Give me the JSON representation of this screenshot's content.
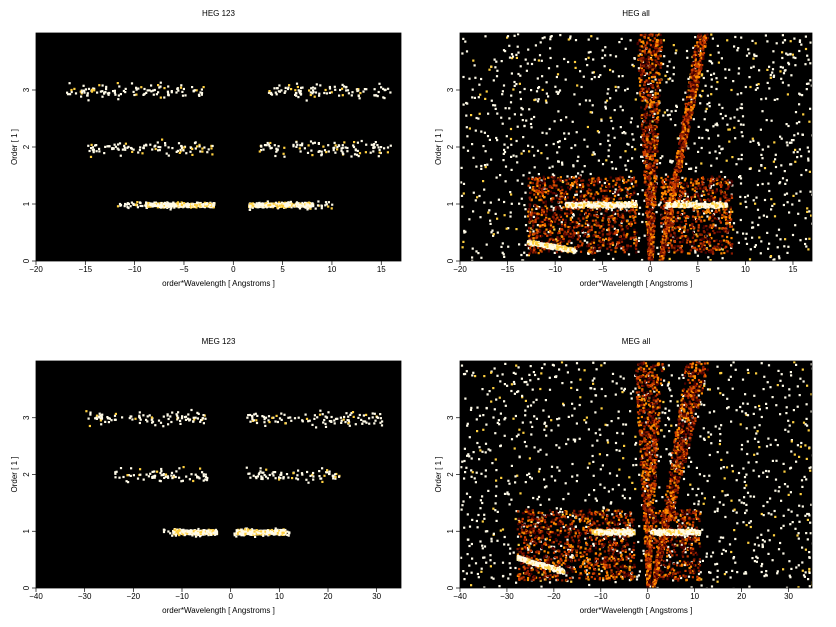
{
  "chart_data": [
    {
      "type": "heatmap",
      "title": "HEG 123",
      "xlabel": "order*Wavelength [ Angstroms ]",
      "ylabel": "Order [ 1 ]",
      "xlim": [
        -20,
        17
      ],
      "ylim": [
        0,
        4
      ],
      "xticks": [
        -20,
        -15,
        -10,
        -5,
        0,
        5,
        10,
        15
      ],
      "yticks": [
        0,
        1,
        2,
        3
      ],
      "background": "#000000",
      "colormap": [
        "#4a0000",
        "#8b1a00",
        "#d04000",
        "#ff8c00",
        "#ffd040",
        "#fffbe8"
      ],
      "regions": [
        {
          "kind": "band",
          "order": 1,
          "x": [
            -12,
            -2
          ],
          "core": [
            -9,
            -2
          ],
          "density": "high"
        },
        {
          "kind": "band",
          "order": 1,
          "x": [
            1.5,
            10
          ],
          "core": [
            1.5,
            8
          ],
          "density": "high"
        },
        {
          "kind": "band",
          "order": 2,
          "x": [
            -15,
            -2
          ],
          "density": "low"
        },
        {
          "kind": "band",
          "order": 2,
          "x": [
            2,
            16
          ],
          "density": "low"
        },
        {
          "kind": "band",
          "order": 3,
          "x": [
            -17,
            -3
          ],
          "density": "low"
        },
        {
          "kind": "band",
          "order": 3,
          "x": [
            3,
            16
          ],
          "density": "low"
        }
      ]
    },
    {
      "type": "heatmap",
      "title": "HEG all",
      "xlabel": "order*Wavelength [ Angstroms ]",
      "ylabel": "Order [ 1 ]",
      "xlim": [
        -20,
        17
      ],
      "ylim": [
        0,
        4
      ],
      "xticks": [
        -20,
        -15,
        -10,
        -5,
        0,
        5,
        10,
        15
      ],
      "yticks": [
        0,
        1,
        2,
        3
      ],
      "background": "#000000",
      "colormap": [
        "#4a0000",
        "#8b1a00",
        "#d04000",
        "#ff8c00",
        "#ffd040",
        "#fffbe8"
      ],
      "regions": [
        {
          "kind": "scatter_field",
          "x": [
            -20,
            17
          ],
          "y": [
            0,
            4
          ],
          "density": "low"
        },
        {
          "kind": "rect",
          "x": [
            -13,
            -1.5
          ],
          "y": [
            0.15,
            1.5
          ],
          "density": "medium"
        },
        {
          "kind": "rect",
          "x": [
            1,
            8.5
          ],
          "y": [
            0.15,
            1.5
          ],
          "density": "medium"
        },
        {
          "kind": "wedge",
          "side": "left",
          "x_top": [
            -1.5,
            1.2
          ],
          "x_bottom": [
            -0.3,
            0.2
          ],
          "density": "medium"
        },
        {
          "kind": "wedge",
          "side": "right",
          "x_top": [
            4.8,
            6
          ],
          "x_bottom": [
            0.8,
            1.2
          ],
          "density": "medium"
        },
        {
          "kind": "band",
          "order": 1,
          "x": [
            -9,
            -1.5
          ],
          "density": "high"
        },
        {
          "kind": "band",
          "order": 1,
          "x": [
            1.5,
            8
          ],
          "density": "high"
        },
        {
          "kind": "curve",
          "x": [
            -13,
            -8
          ],
          "y": [
            0.35,
            0.2
          ],
          "density": "high"
        }
      ]
    },
    {
      "type": "heatmap",
      "title": "MEG 123",
      "xlabel": "order*Wavelength [ Angstroms ]",
      "ylabel": "Order [ 1 ]",
      "xlim": [
        -40,
        35
      ],
      "ylim": [
        0,
        4
      ],
      "xticks": [
        -40,
        -30,
        -20,
        -10,
        0,
        10,
        20,
        30
      ],
      "yticks": [
        0,
        1,
        2,
        3
      ],
      "background": "#000000",
      "colormap": [
        "#4a0000",
        "#8b1a00",
        "#d04000",
        "#ff8c00",
        "#ffd040",
        "#fffbe8"
      ],
      "regions": [
        {
          "kind": "band",
          "order": 1,
          "x": [
            -14,
            -3
          ],
          "core": [
            -12,
            -3
          ],
          "density": "high"
        },
        {
          "kind": "band",
          "order": 1,
          "x": [
            0.5,
            12
          ],
          "core": [
            1,
            11
          ],
          "density": "high"
        },
        {
          "kind": "band",
          "order": 2,
          "x": [
            -24,
            -5
          ],
          "density": "low"
        },
        {
          "kind": "band",
          "order": 2,
          "x": [
            3,
            23
          ],
          "density": "low"
        },
        {
          "kind": "band",
          "order": 3,
          "x": [
            -30,
            -5
          ],
          "density": "low"
        },
        {
          "kind": "band",
          "order": 3,
          "x": [
            3,
            31
          ],
          "density": "low"
        }
      ]
    },
    {
      "type": "heatmap",
      "title": "MEG all",
      "xlabel": "order*Wavelength [ Angstroms ]",
      "ylabel": "Order [ 1 ]",
      "xlim": [
        -40,
        35
      ],
      "ylim": [
        0,
        4
      ],
      "xticks": [
        -40,
        -30,
        -20,
        -10,
        0,
        10,
        20,
        30
      ],
      "yticks": [
        0,
        1,
        2,
        3
      ],
      "background": "#000000",
      "colormap": [
        "#4a0000",
        "#8b1a00",
        "#d04000",
        "#ff8c00",
        "#ffd040",
        "#fffbe8"
      ],
      "regions": [
        {
          "kind": "scatter_field",
          "x": [
            -40,
            35
          ],
          "y": [
            0,
            4
          ],
          "density": "low"
        },
        {
          "kind": "rect",
          "x": [
            -28,
            -3
          ],
          "y": [
            0.15,
            1.4
          ],
          "density": "medium"
        },
        {
          "kind": "rect",
          "x": [
            1,
            11
          ],
          "y": [
            0.15,
            1.4
          ],
          "density": "medium"
        },
        {
          "kind": "wedge",
          "side": "left",
          "x_top": [
            -3,
            3
          ],
          "x_bottom": [
            -0.3,
            0.2
          ],
          "density": "medium"
        },
        {
          "kind": "wedge",
          "side": "right",
          "x_top": [
            8,
            13
          ],
          "x_bottom": [
            0.6,
            1.2
          ],
          "density": "medium"
        },
        {
          "kind": "band",
          "order": 1,
          "x": [
            -12,
            -3
          ],
          "density": "high"
        },
        {
          "kind": "band",
          "order": 1,
          "x": [
            0.5,
            11
          ],
          "density": "high"
        },
        {
          "kind": "curve",
          "x": [
            -28,
            -18
          ],
          "y": [
            0.55,
            0.3
          ],
          "density": "high"
        }
      ]
    }
  ]
}
